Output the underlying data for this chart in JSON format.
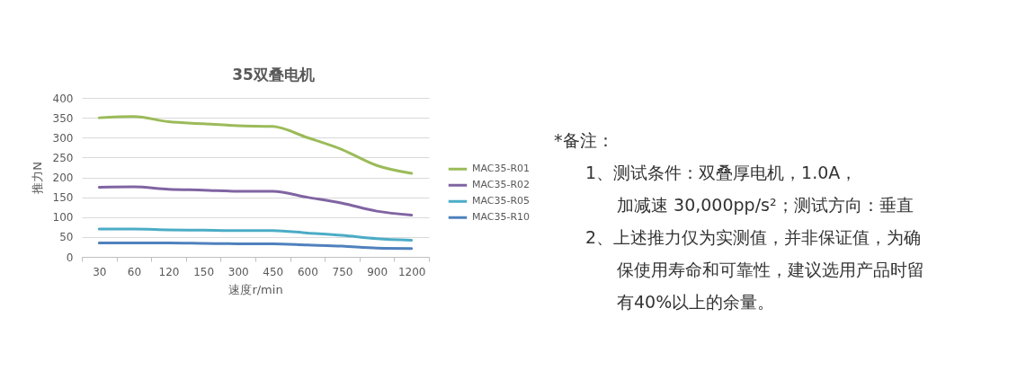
{
  "chart_data": {
    "type": "line",
    "title": "35双叠电机",
    "xlabel": "速度r/min",
    "ylabel": "推力N",
    "categories": [
      "30",
      "60",
      "120",
      "150",
      "300",
      "450",
      "600",
      "750",
      "900",
      "1200"
    ],
    "series": [
      {
        "name": "MAC35-R01",
        "color": "#9bbb59",
        "values": [
          350,
          353,
          340,
          335,
          330,
          328,
          300,
          270,
          230,
          210
        ]
      },
      {
        "name": "MAC35-R02",
        "color": "#8064a2",
        "values": [
          175,
          176,
          170,
          168,
          165,
          165,
          150,
          135,
          115,
          105
        ]
      },
      {
        "name": "MAC35-R05",
        "color": "#4bacc6",
        "values": [
          70,
          70,
          68,
          67,
          66,
          66,
          60,
          54,
          46,
          42
        ]
      },
      {
        "name": "MAC35-R10",
        "color": "#4f81bd",
        "values": [
          35,
          35,
          35,
          34,
          33,
          33,
          30,
          27,
          22,
          21
        ]
      }
    ],
    "ylim": [
      0,
      400
    ],
    "yticks": [
      0,
      50,
      100,
      150,
      200,
      250,
      300,
      350,
      400
    ],
    "grid": "y",
    "legend": "right",
    "line_style": "solid",
    "annotations": [
      "*备注：",
      "1、测试条件：双叠厚电机，1.0A，",
      "加减速 30,000pp/s²；测试方向：垂直",
      "2、上述推力仅为实测值，并非保证值，为确",
      "保使用寿命和可靠性，建议选用产品时留",
      "有40%以上的余量。"
    ]
  }
}
